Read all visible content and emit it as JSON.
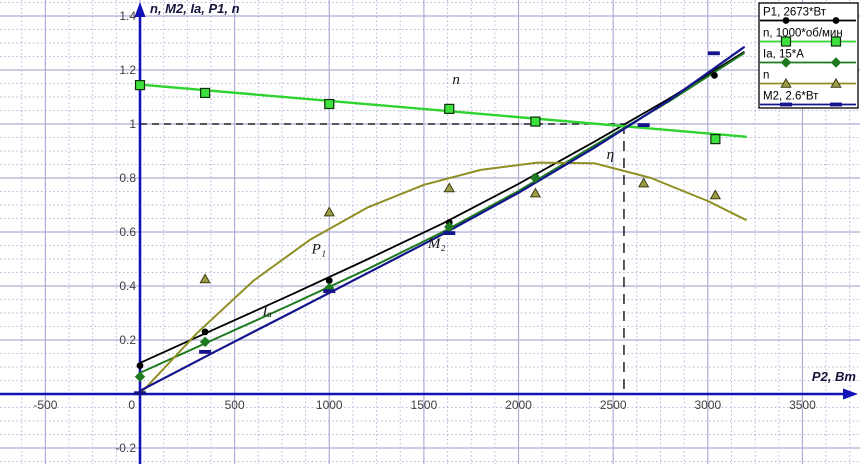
{
  "chart_data": {
    "type": "line",
    "title": "",
    "ylabel": "n, M2, Ia, P1, n",
    "xlabel": "P2, Вт",
    "xlim": [
      -740,
      3800
    ],
    "ylim": [
      -0.26,
      1.46
    ],
    "grid": {
      "major_x_step": 500,
      "minor_x_step": 125,
      "major_y_step": 0.2,
      "minor_y_step": 0.05
    },
    "x_ticks": [
      {
        "v": -500,
        "t": "-500"
      },
      {
        "v": 0,
        "t": "0"
      },
      {
        "v": 500,
        "t": "500"
      },
      {
        "v": 1000,
        "t": "1000"
      },
      {
        "v": 1500,
        "t": "1500"
      },
      {
        "v": 2000,
        "t": "2000"
      },
      {
        "v": 2500,
        "t": "2500"
      },
      {
        "v": 3000,
        "t": "3000"
      },
      {
        "v": 3500,
        "t": "3500"
      }
    ],
    "y_ticks": [
      {
        "v": 1.4,
        "t": "1.4"
      },
      {
        "v": 1.2,
        "t": "1.2"
      },
      {
        "v": 1,
        "t": "1"
      },
      {
        "v": 0.8,
        "t": "0.8"
      },
      {
        "v": 0.6,
        "t": "0.6"
      },
      {
        "v": 0.4,
        "t": "0.4"
      },
      {
        "v": 0.2,
        "t": "0.2"
      },
      {
        "v": -0.2,
        "t": "-0.2"
      }
    ],
    "series": [
      {
        "key": "p1",
        "name": "P1, 2673*Вт",
        "color": "#000000",
        "marker": "circle",
        "marker_fill": "#000000",
        "stroke_width": 1.8,
        "curve": [
          [
            0,
            0.115
          ],
          [
            400,
            0.242
          ],
          [
            800,
            0.368
          ],
          [
            1200,
            0.498
          ],
          [
            1600,
            0.632
          ],
          [
            2000,
            0.778
          ],
          [
            2400,
            0.934
          ],
          [
            2800,
            1.096
          ],
          [
            3190,
            1.266
          ]
        ],
        "points": [
          [
            0,
            0.105
          ],
          [
            344,
            0.23
          ],
          [
            1000,
            0.42
          ],
          [
            1634,
            0.635
          ],
          [
            2089,
            0.805
          ],
          [
            3035,
            1.18
          ]
        ]
      },
      {
        "key": "n-speed",
        "name": "n, 1000*об/мин",
        "color": "#2fd32f",
        "marker": "square",
        "marker_fill": "#3de13d",
        "stroke_width": 2.4,
        "curve": [
          [
            0,
            1.146
          ],
          [
            3200,
            0.953
          ]
        ],
        "points": [
          [
            0,
            1.144
          ],
          [
            344,
            1.115
          ],
          [
            1000,
            1.074
          ],
          [
            1634,
            1.056
          ],
          [
            2089,
            1.009
          ],
          [
            3040,
            0.944
          ]
        ]
      },
      {
        "key": "ia",
        "name": "Ia, 15*A",
        "color": "#1e7a1e",
        "marker": "diamond",
        "marker_fill": "#1e7a1e",
        "stroke_width": 2,
        "curve": [
          [
            0,
            0.078
          ],
          [
            400,
            0.205
          ],
          [
            800,
            0.332
          ],
          [
            1200,
            0.462
          ],
          [
            1600,
            0.6
          ],
          [
            2000,
            0.752
          ],
          [
            2400,
            0.92
          ],
          [
            2800,
            1.086
          ],
          [
            3190,
            1.262
          ]
        ],
        "points": [
          [
            0,
            0.064
          ],
          [
            344,
            0.193
          ],
          [
            1000,
            0.392
          ],
          [
            1634,
            0.619
          ],
          [
            2089,
            0.8
          ]
        ]
      },
      {
        "key": "eta",
        "name": "n",
        "color": "#8f8f23",
        "marker": "triangle",
        "marker_fill": "#9c9c46",
        "stroke_width": 2,
        "curve": [
          [
            0,
            0.0
          ],
          [
            300,
            0.225
          ],
          [
            600,
            0.42
          ],
          [
            900,
            0.572
          ],
          [
            1200,
            0.69
          ],
          [
            1500,
            0.775
          ],
          [
            1800,
            0.83
          ],
          [
            2100,
            0.857
          ],
          [
            2400,
            0.855
          ],
          [
            2700,
            0.8
          ],
          [
            3000,
            0.715
          ],
          [
            3200,
            0.645
          ]
        ],
        "points": [
          [
            344,
            0.426
          ],
          [
            1000,
            0.674
          ],
          [
            1634,
            0.763
          ],
          [
            2089,
            0.744
          ],
          [
            2661,
            0.781
          ],
          [
            3040,
            0.737
          ]
        ]
      },
      {
        "key": "m2",
        "name": "M2, 2.6*Вт",
        "color": "#14148c",
        "marker": "dash",
        "marker_fill": "#14148c",
        "stroke_width": 2.2,
        "curve": [
          [
            0,
            0.012
          ],
          [
            400,
            0.158
          ],
          [
            800,
            0.302
          ],
          [
            1200,
            0.447
          ],
          [
            1600,
            0.592
          ],
          [
            2000,
            0.745
          ],
          [
            2400,
            0.912
          ],
          [
            2800,
            1.09
          ],
          [
            3190,
            1.284
          ]
        ],
        "points": [
          [
            0,
            0.003
          ],
          [
            344,
            0.156
          ],
          [
            1000,
            0.381
          ],
          [
            1634,
            0.596
          ],
          [
            2661,
            0.996
          ],
          [
            3032,
            1.262
          ]
        ]
      }
    ],
    "annotations": [
      {
        "text": "n",
        "x": 1670,
        "y": 1.148
      },
      {
        "text": "P₁",
        "x": 945,
        "y": 0.52
      },
      {
        "text": "Iₐ",
        "x": 672,
        "y": 0.29
      },
      {
        "text": "M₂",
        "x": 1568,
        "y": 0.54
      },
      {
        "text": "η",
        "x": 2485,
        "y": 0.87
      }
    ],
    "reference_lines": {
      "horizontal": {
        "y": 1.0,
        "x1": 0,
        "x2": 2557
      },
      "vertical": {
        "x": 2557,
        "y1": 1.0,
        "y2": 0.0
      }
    },
    "legend_position": "top-right"
  },
  "colors": {
    "axis": "#1212b6",
    "grid_major": "#aeaed4",
    "grid_minor": "#b4b4da",
    "reference_line": "#000000",
    "legend_border": "#000000",
    "legend_background": "#ffffff"
  }
}
